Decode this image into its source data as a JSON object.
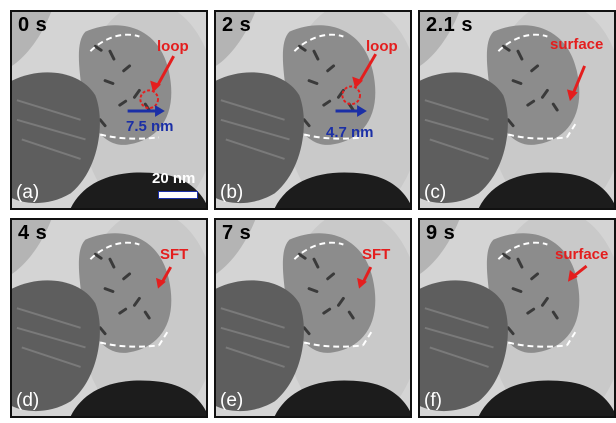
{
  "panels": [
    {
      "time": "0 s",
      "letter": "(a)",
      "label": "loop",
      "distance": "7.5 nm",
      "scale": "20 nm"
    },
    {
      "time": "2 s",
      "letter": "(b)",
      "label": "loop",
      "distance": "4.7 nm"
    },
    {
      "time": "2.1 s",
      "letter": "(c)",
      "label": "surface"
    },
    {
      "time": "4 s",
      "letter": "(d)",
      "label": "SFT"
    },
    {
      "time": "7 s",
      "letter": "(e)",
      "label": "SFT"
    },
    {
      "time": "9 s",
      "letter": "(f)",
      "label": "surface"
    }
  ],
  "colors": {
    "annotation": "#e41e1e",
    "distance": "#1b2fa6",
    "boundary": "#ffffff"
  }
}
